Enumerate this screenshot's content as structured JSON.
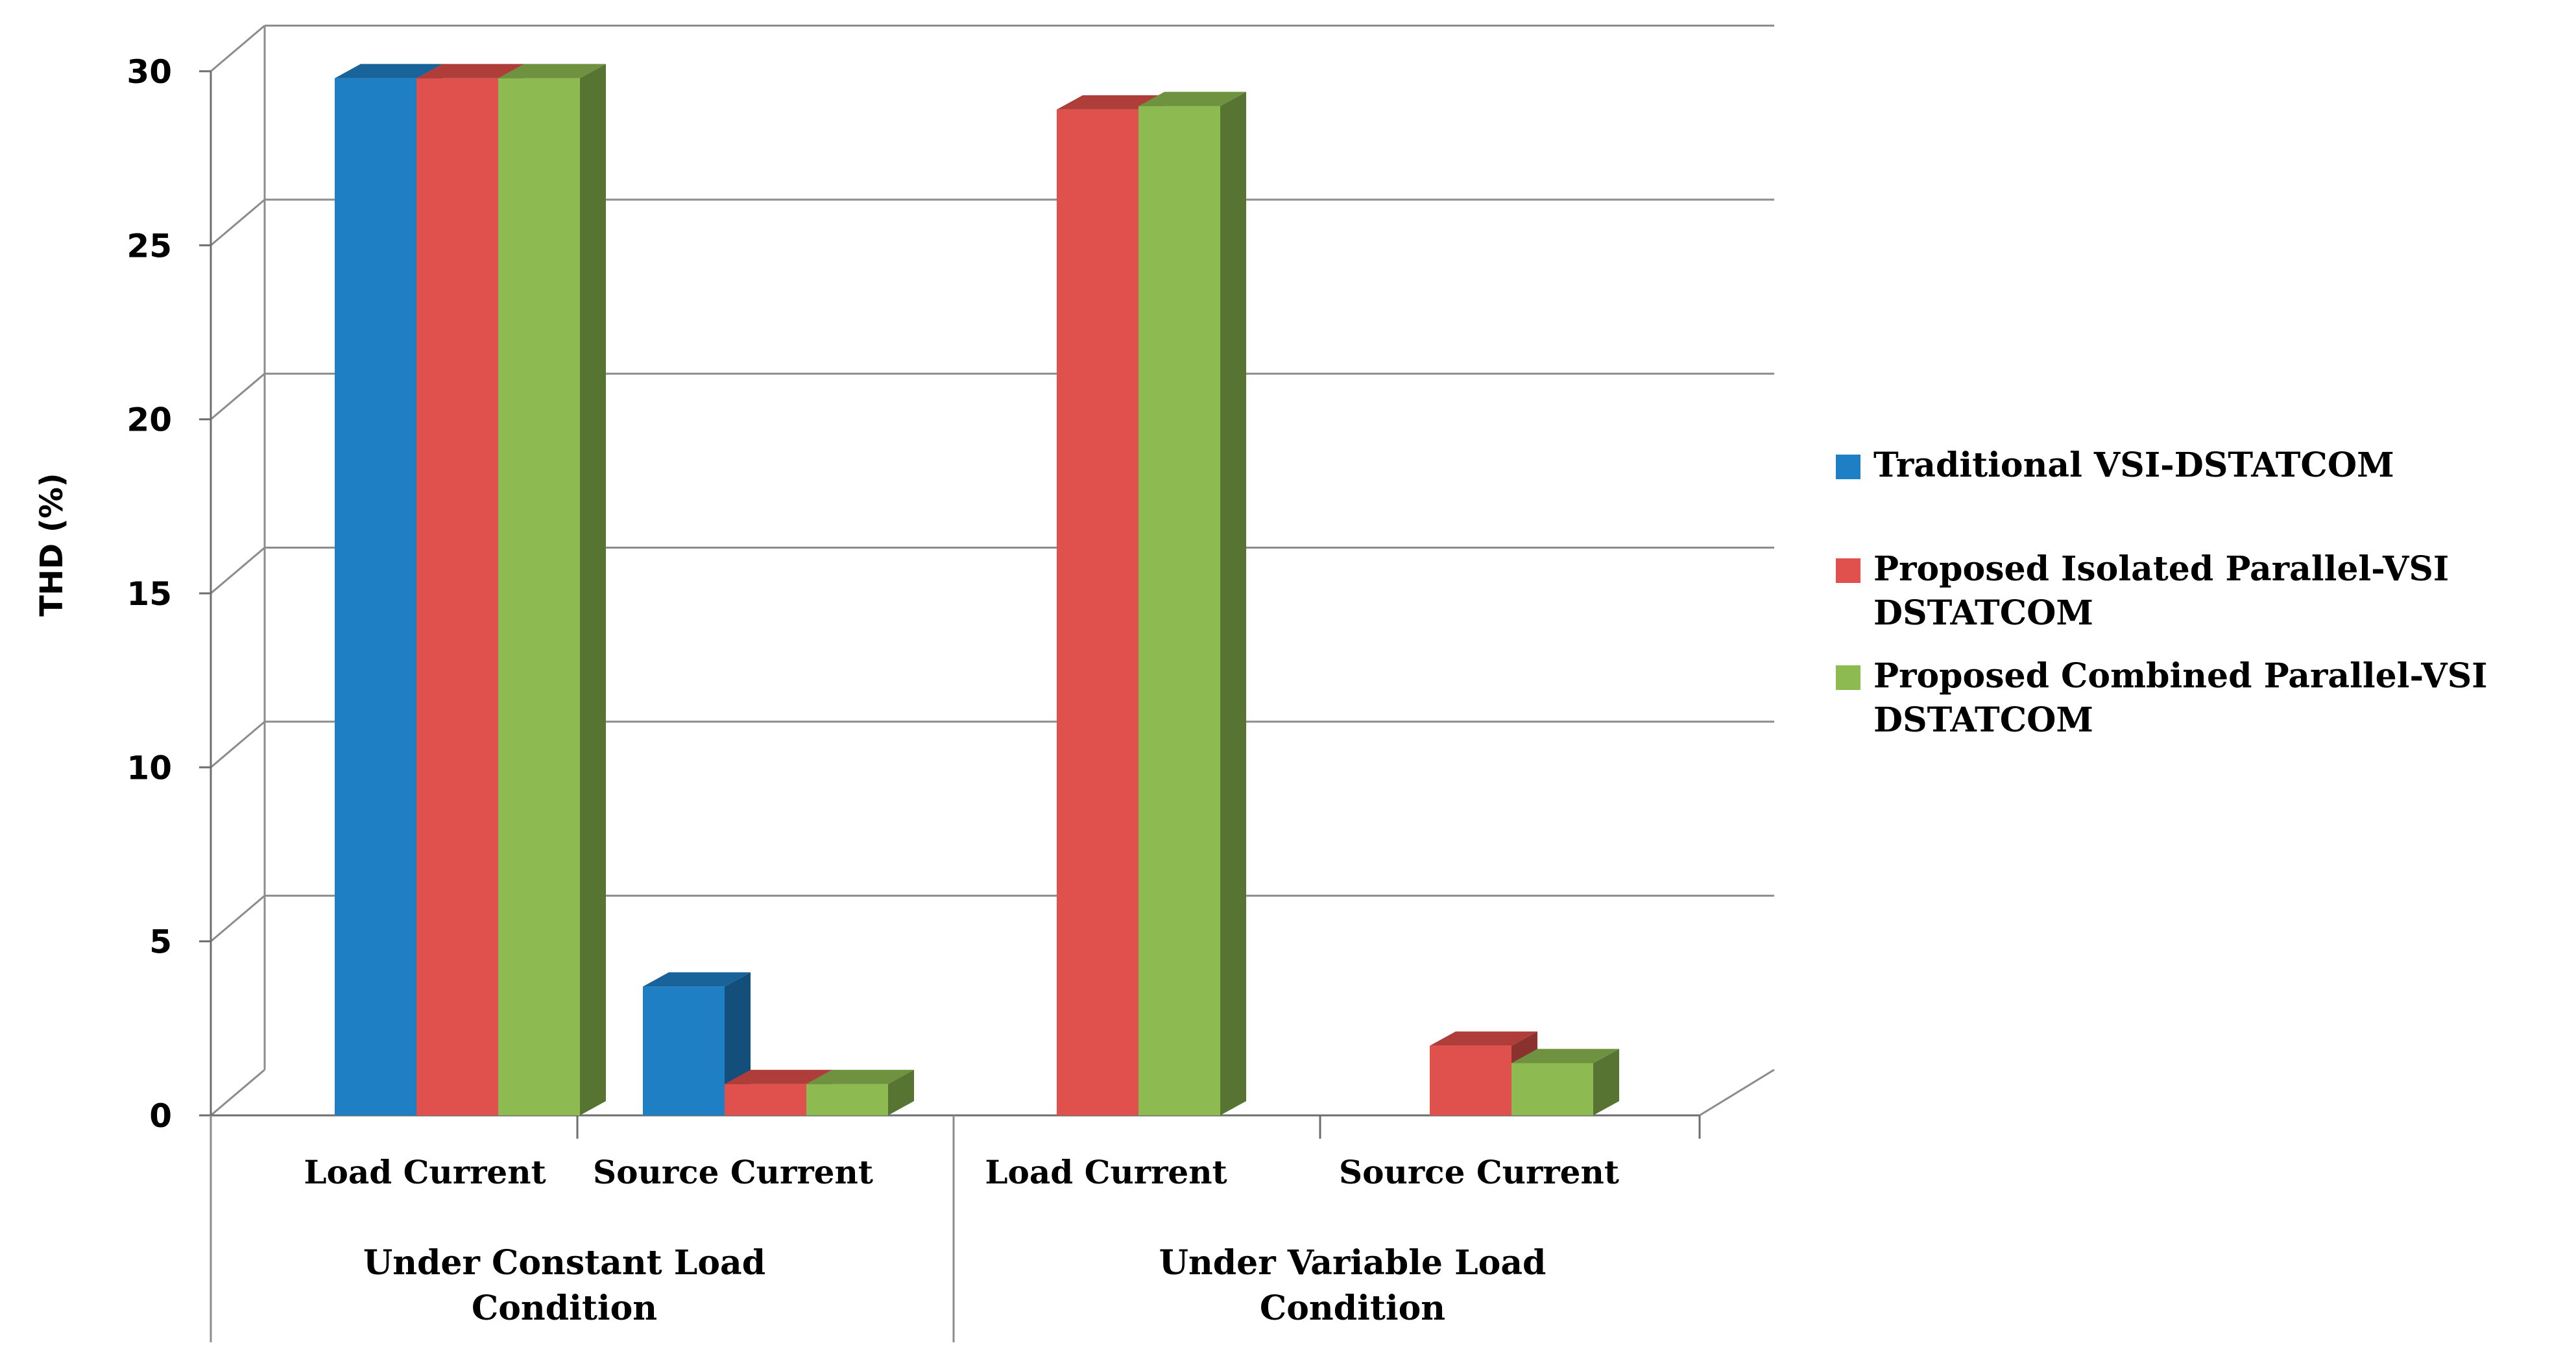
{
  "chart_data": {
    "type": "bar",
    "title": "",
    "ylabel": "THD (%)",
    "xlabel": "",
    "ylim": [
      0,
      30
    ],
    "yticks": [
      "0",
      "5",
      "10",
      "15",
      "20",
      "25",
      "30"
    ],
    "grid": true,
    "legend_position": "right",
    "categories": [
      "Load Current",
      "Source Current",
      "Load Current",
      "Source Current"
    ],
    "groups": [
      {
        "label_lines": [
          "Under Constant Load",
          "Condition"
        ],
        "categories": [
          0,
          1
        ]
      },
      {
        "label_lines": [
          "Under Variable Load",
          "Condition"
        ],
        "categories": [
          2,
          3
        ]
      }
    ],
    "series": [
      {
        "name": "Traditional VSI-DSTATCOM",
        "legend_lines": [
          "Traditional VSI-DSTATCOM"
        ],
        "color": "#1F7FC4",
        "values": [
          29.8,
          3.7,
          null,
          null
        ]
      },
      {
        "name": "Proposed Isolated Parallel-VSI DSTATCOM",
        "legend_lines": [
          "Proposed Isolated Parallel-VSI",
          "DSTATCOM"
        ],
        "color": "#E0504C",
        "values": [
          29.8,
          0.9,
          28.9,
          2.0
        ]
      },
      {
        "name": "Proposed Combined Parallel-VSI DSTATCOM",
        "legend_lines": [
          "Proposed Combined Parallel-VSI",
          "DSTATCOM"
        ],
        "color": "#8DBB51",
        "values": [
          29.8,
          0.9,
          29.0,
          1.5
        ]
      }
    ]
  }
}
